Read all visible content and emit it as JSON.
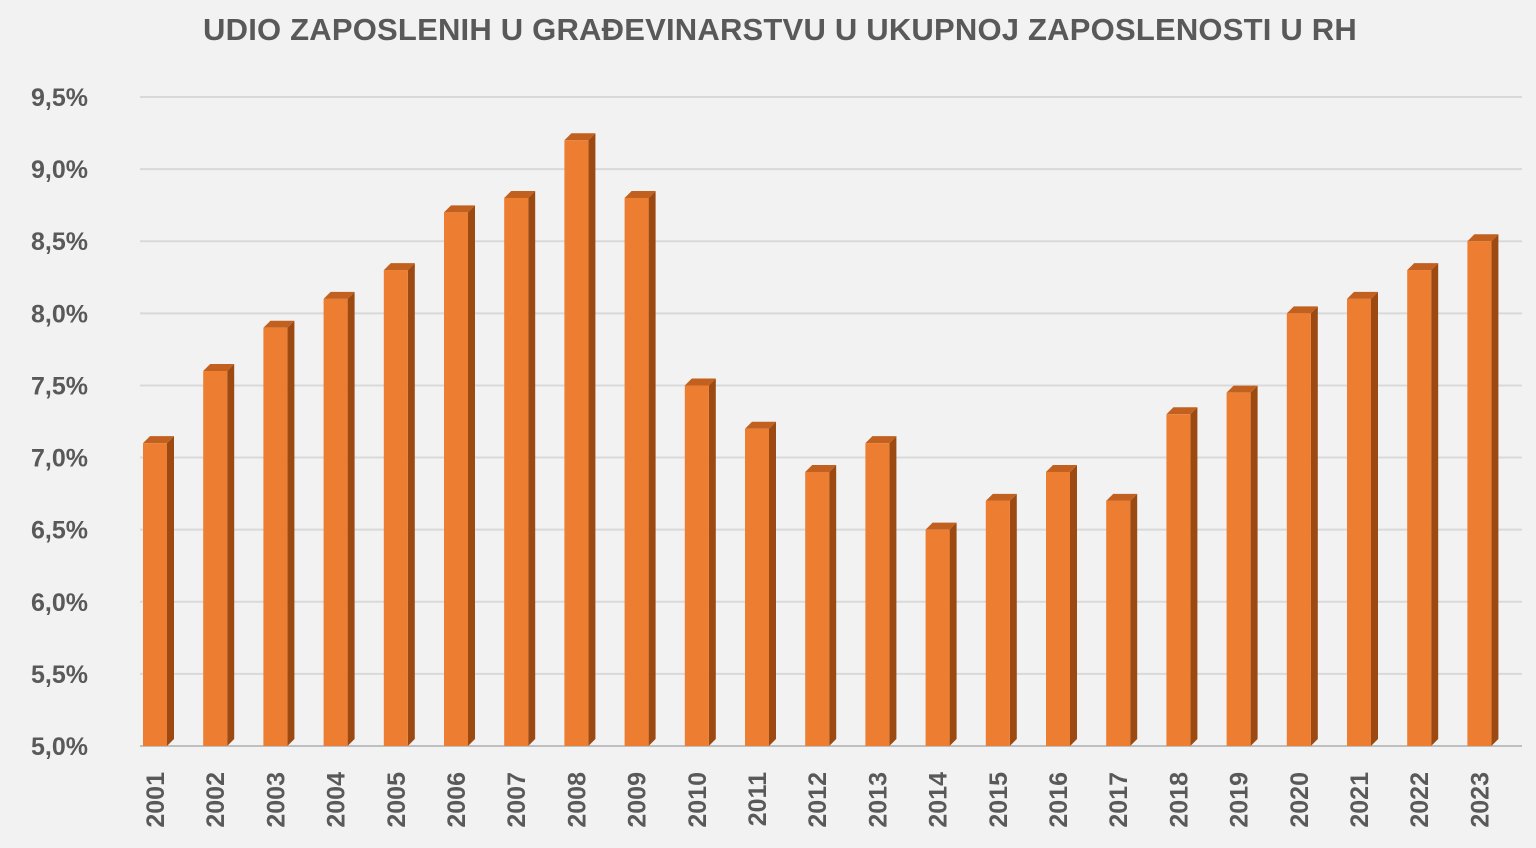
{
  "chart_data": {
    "type": "bar",
    "title": "UDIO ZAPOSLENIH U GRAĐEVINARSTVU U UKUPNOJ ZAPOSLENOSTI U RH",
    "xlabel": "",
    "ylabel": "",
    "categories": [
      "2001",
      "2002",
      "2003",
      "2004",
      "2005",
      "2006",
      "2007",
      "2008",
      "2009",
      "2010",
      "2011",
      "2012",
      "2013",
      "2014",
      "2015",
      "2016",
      "2017",
      "2018",
      "2019",
      "2020",
      "2021",
      "2022",
      "2023"
    ],
    "values": [
      7.1,
      7.6,
      7.9,
      8.1,
      8.3,
      8.7,
      8.8,
      9.2,
      8.8,
      7.5,
      7.2,
      6.9,
      7.1,
      6.5,
      6.7,
      6.9,
      6.7,
      7.3,
      7.45,
      8.0,
      8.1,
      8.3,
      8.5
    ],
    "ylim": [
      5.0,
      9.5
    ],
    "yticks": [
      "5,0%",
      "5,5%",
      "6,0%",
      "6,5%",
      "7,0%",
      "7,5%",
      "8,0%",
      "8,5%",
      "9,0%",
      "9,5%"
    ],
    "grid": true,
    "legend": "none",
    "colors": {
      "bar_front": "#ed7d31",
      "bar_side": "#9c4a12",
      "bar_top": "#c2611f",
      "grid": "#d9d9d9",
      "text": "#595959"
    }
  }
}
